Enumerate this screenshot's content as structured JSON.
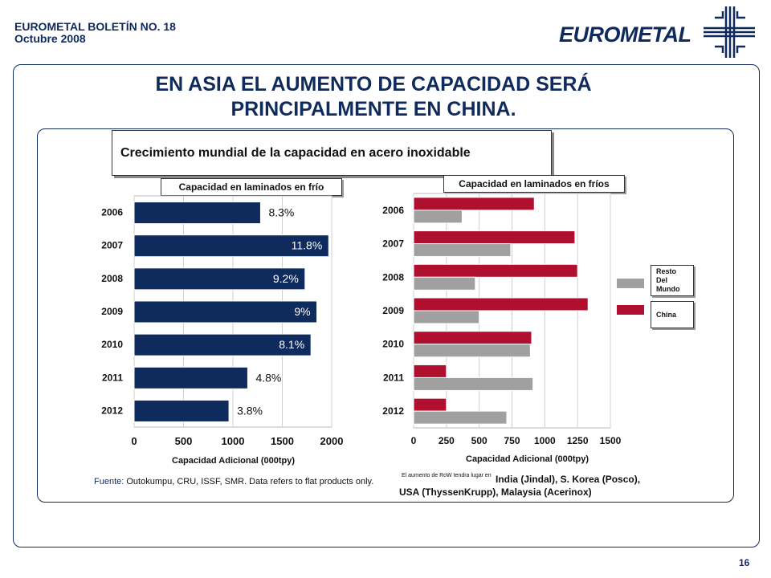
{
  "header": {
    "line1": "EUROMETAL BOLETÍN NO. 18",
    "line2": "Octubre 2008",
    "logo_text": "EUROMETAL"
  },
  "title": {
    "line1": "EN ASIA EL AUMENTO DE CAPACIDAD SERÁ",
    "line2": "PRINCIPALMENTE EN CHINA."
  },
  "subtitle": "Crecimiento mundial de la capacidad en acero inoxidable",
  "source": {
    "label": "Fuente:",
    "text": " Outokumpu, CRU, ISSF, SMR. Data refers to flat products only."
  },
  "note_small": "El aumento de RoW tendra lugar en",
  "note_big": "India (Jindal), S. Korea (Posco), USA (ThyssenKrupp), Malaysia (Acerinox)",
  "page_number": "16",
  "colors": {
    "navy": "#0f2a5c",
    "red": "#b0102f",
    "gray": "#a0a0a0"
  },
  "chart_data": [
    {
      "type": "bar",
      "orientation": "horizontal",
      "title": "Capacidad  en laminados en frío",
      "xlabel": "Capacidad Adicional (000tpy)",
      "categories": [
        "2006",
        "2007",
        "2008",
        "2009",
        "2010",
        "2011",
        "2012"
      ],
      "values": [
        1280,
        1970,
        1730,
        1850,
        1790,
        1150,
        960
      ],
      "data_labels": [
        "8.3%",
        "11.8%",
        "9.2%",
        "9%",
        "8.1%",
        "4.8%",
        "3.8%"
      ],
      "xlim": [
        0,
        2000
      ],
      "xticks": [
        0,
        500,
        1000,
        1500,
        2000
      ],
      "color": "#0f2a5c"
    },
    {
      "type": "bar",
      "orientation": "horizontal",
      "title": "Capacidad  en laminados en  fríos",
      "xlabel": "Capacidad Adicional (000tpy)",
      "categories": [
        "2006",
        "2007",
        "2008",
        "2009",
        "2010",
        "2011",
        "2012"
      ],
      "series": [
        {
          "name": "China",
          "color": "#b0102f",
          "values": [
            920,
            1230,
            1250,
            1330,
            900,
            250,
            250
          ]
        },
        {
          "name": "Resto Del Mundo",
          "color": "#a0a0a0",
          "values": [
            370,
            740,
            470,
            500,
            890,
            910,
            710
          ]
        }
      ],
      "xlim": [
        0,
        1500
      ],
      "xticks": [
        0,
        250,
        500,
        750,
        1000,
        1250,
        1500
      ],
      "legend_labels": {
        "row": "Resto Del Mundo",
        "china": "China"
      },
      "legend_position": "right"
    }
  ]
}
